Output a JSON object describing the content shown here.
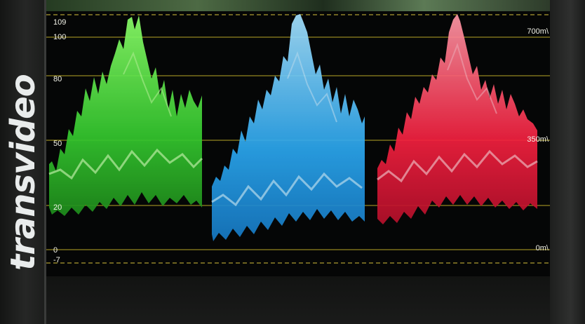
{
  "brand": {
    "name": "transvideo"
  },
  "scale": {
    "left_labels": [
      {
        "id": "ire-109",
        "text": "109"
      },
      {
        "id": "ire-100",
        "text": "100"
      },
      {
        "id": "ire-80",
        "text": "80"
      },
      {
        "id": "ire-50",
        "text": "50"
      },
      {
        "id": "ire-20",
        "text": "20"
      },
      {
        "id": "ire-0",
        "text": "0"
      },
      {
        "id": "ire-neg7",
        "text": "-7"
      }
    ],
    "right_labels": [
      {
        "id": "mv-700",
        "text": "700m\\"
      },
      {
        "id": "mv-350",
        "text": "350m\\"
      },
      {
        "id": "mv-0",
        "text": "0m\\"
      }
    ]
  },
  "parade": {
    "channels": [
      {
        "name": "green",
        "color": "#3fdc3a"
      },
      {
        "name": "blue",
        "color": "#2fa8f0"
      },
      {
        "name": "red",
        "color": "#ff2e4e"
      }
    ]
  },
  "colors": {
    "graticule": "#b7a526",
    "graticule_dashed": "#d6c23a"
  }
}
